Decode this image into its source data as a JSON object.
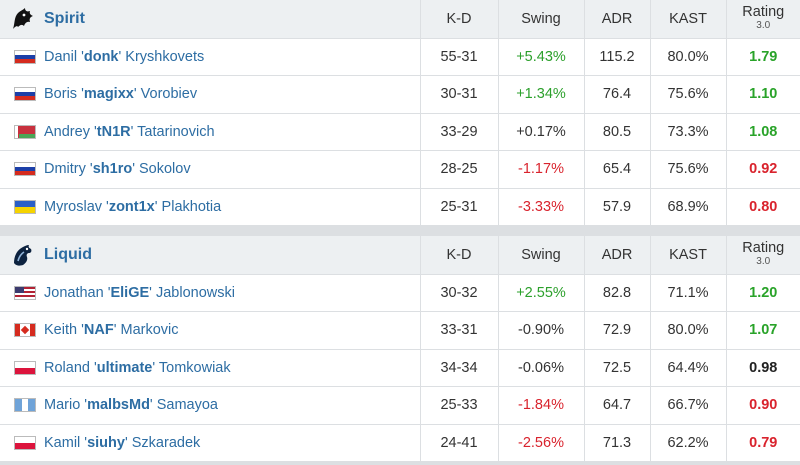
{
  "columns": {
    "kd": "K-D",
    "swing": "Swing",
    "adr": "ADR",
    "kast": "KAST",
    "rating": "Rating",
    "rating_sub": "3.0"
  },
  "colors": {
    "link": "#2d6da3",
    "positive": "#2ca02c",
    "negative": "#d9232d"
  },
  "teams": [
    {
      "name": "Spirit",
      "logo_icon": "spirit-dragon-icon",
      "players": [
        {
          "flag": "ru",
          "first": "Danil",
          "nick": "donk",
          "last": "Kryshkovets",
          "kd": "55-31",
          "swing": "+5.43%",
          "swing_sign": "pos",
          "adr": "115.2",
          "kast": "80.0%",
          "rating": "1.79",
          "rating_class": "good"
        },
        {
          "flag": "ru",
          "first": "Boris",
          "nick": "magixx",
          "last": "Vorobiev",
          "kd": "30-31",
          "swing": "+1.34%",
          "swing_sign": "pos",
          "adr": "76.4",
          "kast": "75.6%",
          "rating": "1.10",
          "rating_class": "good"
        },
        {
          "flag": "by",
          "first": "Andrey",
          "nick": "tN1R",
          "last": "Tatarinovich",
          "kd": "33-29",
          "swing": "+0.17%",
          "swing_sign": "neu",
          "adr": "80.5",
          "kast": "73.3%",
          "rating": "1.08",
          "rating_class": "good"
        },
        {
          "flag": "ru",
          "first": "Dmitry",
          "nick": "sh1ro",
          "last": "Sokolov",
          "kd": "28-25",
          "swing": "-1.17%",
          "swing_sign": "neg",
          "adr": "65.4",
          "kast": "75.6%",
          "rating": "0.92",
          "rating_class": "bad"
        },
        {
          "flag": "ua",
          "first": "Myroslav",
          "nick": "zont1x",
          "last": "Plakhotia",
          "kd": "25-31",
          "swing": "-3.33%",
          "swing_sign": "neg",
          "adr": "57.9",
          "kast": "68.9%",
          "rating": "0.80",
          "rating_class": "bad"
        }
      ]
    },
    {
      "name": "Liquid",
      "logo_icon": "liquid-horse-icon",
      "players": [
        {
          "flag": "us",
          "first": "Jonathan",
          "nick": "EliGE",
          "last": "Jablonowski",
          "kd": "30-32",
          "swing": "+2.55%",
          "swing_sign": "pos",
          "adr": "82.8",
          "kast": "71.1%",
          "rating": "1.20",
          "rating_class": "good"
        },
        {
          "flag": "ca",
          "first": "Keith",
          "nick": "NAF",
          "last": "Markovic",
          "kd": "33-31",
          "swing": "-0.90%",
          "swing_sign": "neu",
          "adr": "72.9",
          "kast": "80.0%",
          "rating": "1.07",
          "rating_class": "good"
        },
        {
          "flag": "pl",
          "first": "Roland",
          "nick": "ultimate",
          "last": "Tomkowiak",
          "kd": "34-34",
          "swing": "-0.06%",
          "swing_sign": "neu",
          "adr": "72.5",
          "kast": "64.4%",
          "rating": "0.98",
          "rating_class": "neu"
        },
        {
          "flag": "gt",
          "first": "Mario",
          "nick": "malbsMd",
          "last": "Samayoa",
          "kd": "25-33",
          "swing": "-1.84%",
          "swing_sign": "neg",
          "adr": "64.7",
          "kast": "66.7%",
          "rating": "0.90",
          "rating_class": "bad"
        },
        {
          "flag": "pl",
          "first": "Kamil",
          "nick": "siuhy",
          "last": "Szkaradek",
          "kd": "24-41",
          "swing": "-2.56%",
          "swing_sign": "neg",
          "adr": "71.3",
          "kast": "62.2%",
          "rating": "0.79",
          "rating_class": "bad"
        }
      ]
    }
  ]
}
